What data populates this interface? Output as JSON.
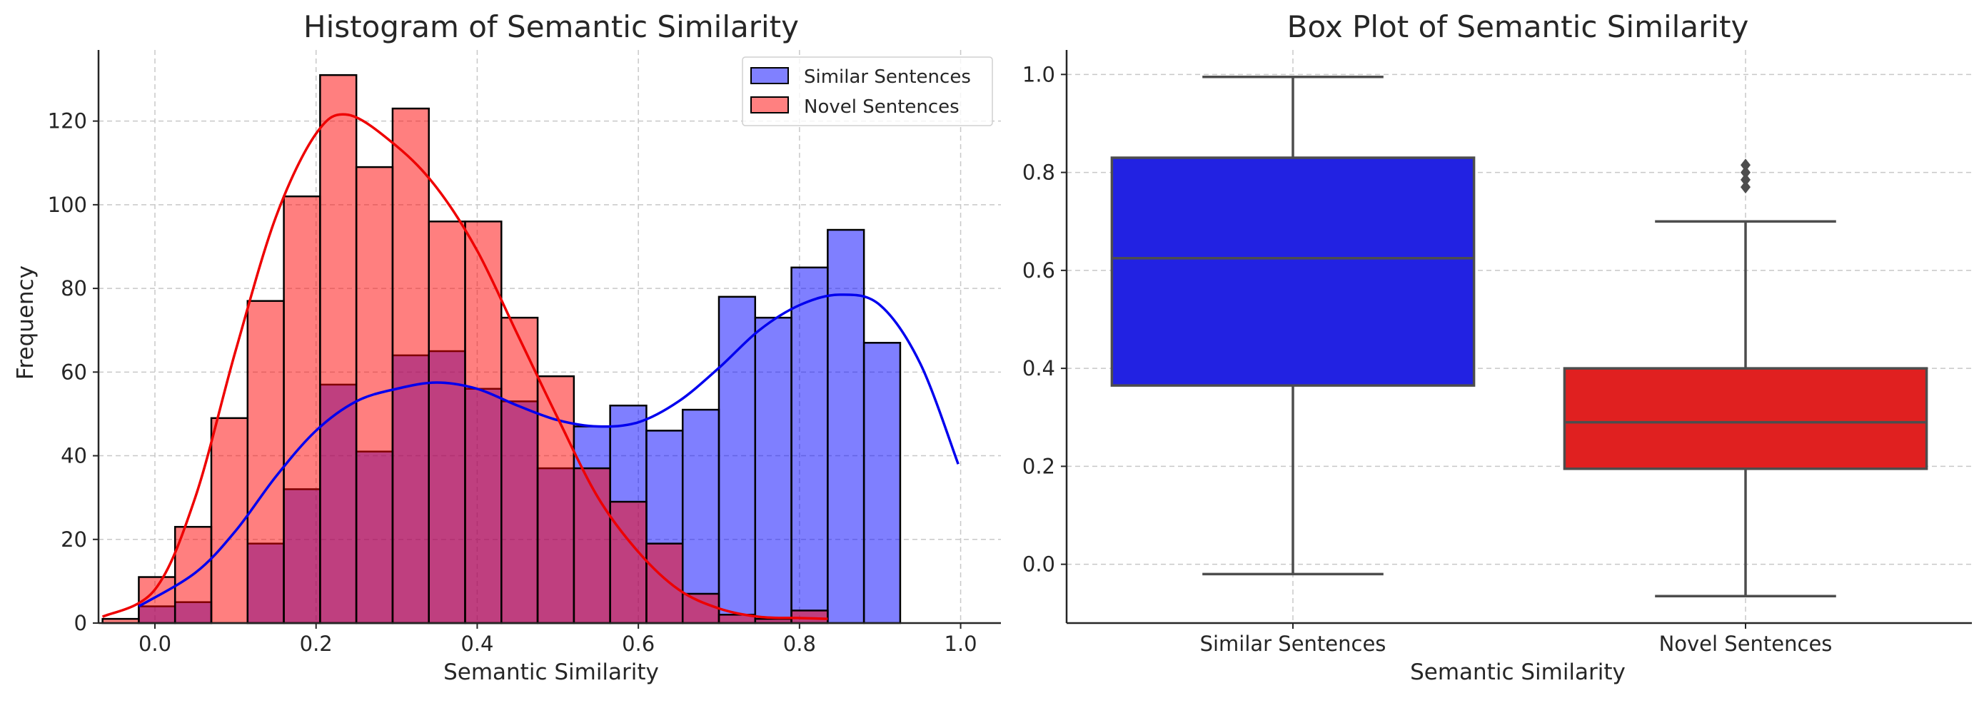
{
  "chart_data": [
    {
      "type": "histogram",
      "title": "Histogram of Semantic Similarity",
      "xlabel": "Semantic Similarity",
      "ylabel": "Frequency",
      "xlim": [
        -0.07,
        1.05
      ],
      "ylim": [
        0,
        137
      ],
      "xticks": [
        "0.0",
        "0.2",
        "0.4",
        "0.6",
        "0.8",
        "1.0"
      ],
      "yticks": [
        "0",
        "20",
        "40",
        "60",
        "80",
        "100",
        "120"
      ],
      "grid": true,
      "legend_position": "top-right",
      "series": [
        {
          "name": "Similar Sentences",
          "color": "#8080ff",
          "kde_color": "#0000ee",
          "bin_start": -0.02,
          "bin_width": 0.045,
          "counts": [
            4,
            5,
            0,
            19,
            32,
            57,
            41,
            64,
            65,
            56,
            53,
            37,
            47,
            52,
            46,
            51,
            78,
            73,
            85,
            94,
            67
          ],
          "kde": [
            [
              -0.02,
              4
            ],
            [
              0.05,
              12
            ],
            [
              0.1,
              22
            ],
            [
              0.15,
              35
            ],
            [
              0.2,
              46
            ],
            [
              0.25,
              53
            ],
            [
              0.3,
              56
            ],
            [
              0.35,
              57.5
            ],
            [
              0.4,
              56
            ],
            [
              0.45,
              52
            ],
            [
              0.5,
              48.5
            ],
            [
              0.55,
              47
            ],
            [
              0.6,
              48
            ],
            [
              0.65,
              53
            ],
            [
              0.7,
              61
            ],
            [
              0.75,
              70
            ],
            [
              0.8,
              76
            ],
            [
              0.85,
              78.5
            ],
            [
              0.9,
              76
            ],
            [
              0.95,
              62
            ],
            [
              0.997,
              38
            ]
          ]
        },
        {
          "name": "Novel Sentences",
          "color": "#ff8080",
          "kde_color": "#ee0000",
          "bin_start": -0.065,
          "bin_width": 0.045,
          "counts": [
            1,
            11,
            23,
            49,
            77,
            102,
            131,
            109,
            123,
            96,
            96,
            73,
            59,
            37,
            29,
            19,
            7,
            2,
            1,
            3
          ],
          "kde": [
            [
              -0.065,
              1.5
            ],
            [
              0.0,
              8
            ],
            [
              0.05,
              30
            ],
            [
              0.1,
              65
            ],
            [
              0.15,
              97
            ],
            [
              0.2,
              117
            ],
            [
              0.24,
              121.5
            ],
            [
              0.3,
              114
            ],
            [
              0.35,
              104
            ],
            [
              0.4,
              89
            ],
            [
              0.45,
              69
            ],
            [
              0.5,
              49
            ],
            [
              0.55,
              30
            ],
            [
              0.6,
              17
            ],
            [
              0.65,
              8
            ],
            [
              0.7,
              3.5
            ],
            [
              0.75,
              1.5
            ],
            [
              0.8,
              1.2
            ],
            [
              0.835,
              1
            ]
          ]
        }
      ]
    },
    {
      "type": "box",
      "title": "Box Plot of Semantic Similarity",
      "xlabel": "Semantic Similarity",
      "ylabel": "",
      "ylim": [
        -0.12,
        1.05
      ],
      "yticks": [
        "0.0",
        "0.2",
        "0.4",
        "0.6",
        "0.8",
        "1.0"
      ],
      "grid": true,
      "categories": [
        "Similar Sentences",
        "Novel Sentences"
      ],
      "boxes": [
        {
          "name": "Similar Sentences",
          "color": "#2222e2",
          "whisker_low": -0.02,
          "q1": 0.365,
          "median": 0.625,
          "q3": 0.83,
          "whisker_high": 0.995,
          "outliers": []
        },
        {
          "name": "Novel Sentences",
          "color": "#e02020",
          "whisker_low": -0.065,
          "q1": 0.195,
          "median": 0.29,
          "q3": 0.4,
          "whisker_high": 0.7,
          "outliers": [
            0.77,
            0.785,
            0.8,
            0.815
          ]
        }
      ]
    }
  ]
}
